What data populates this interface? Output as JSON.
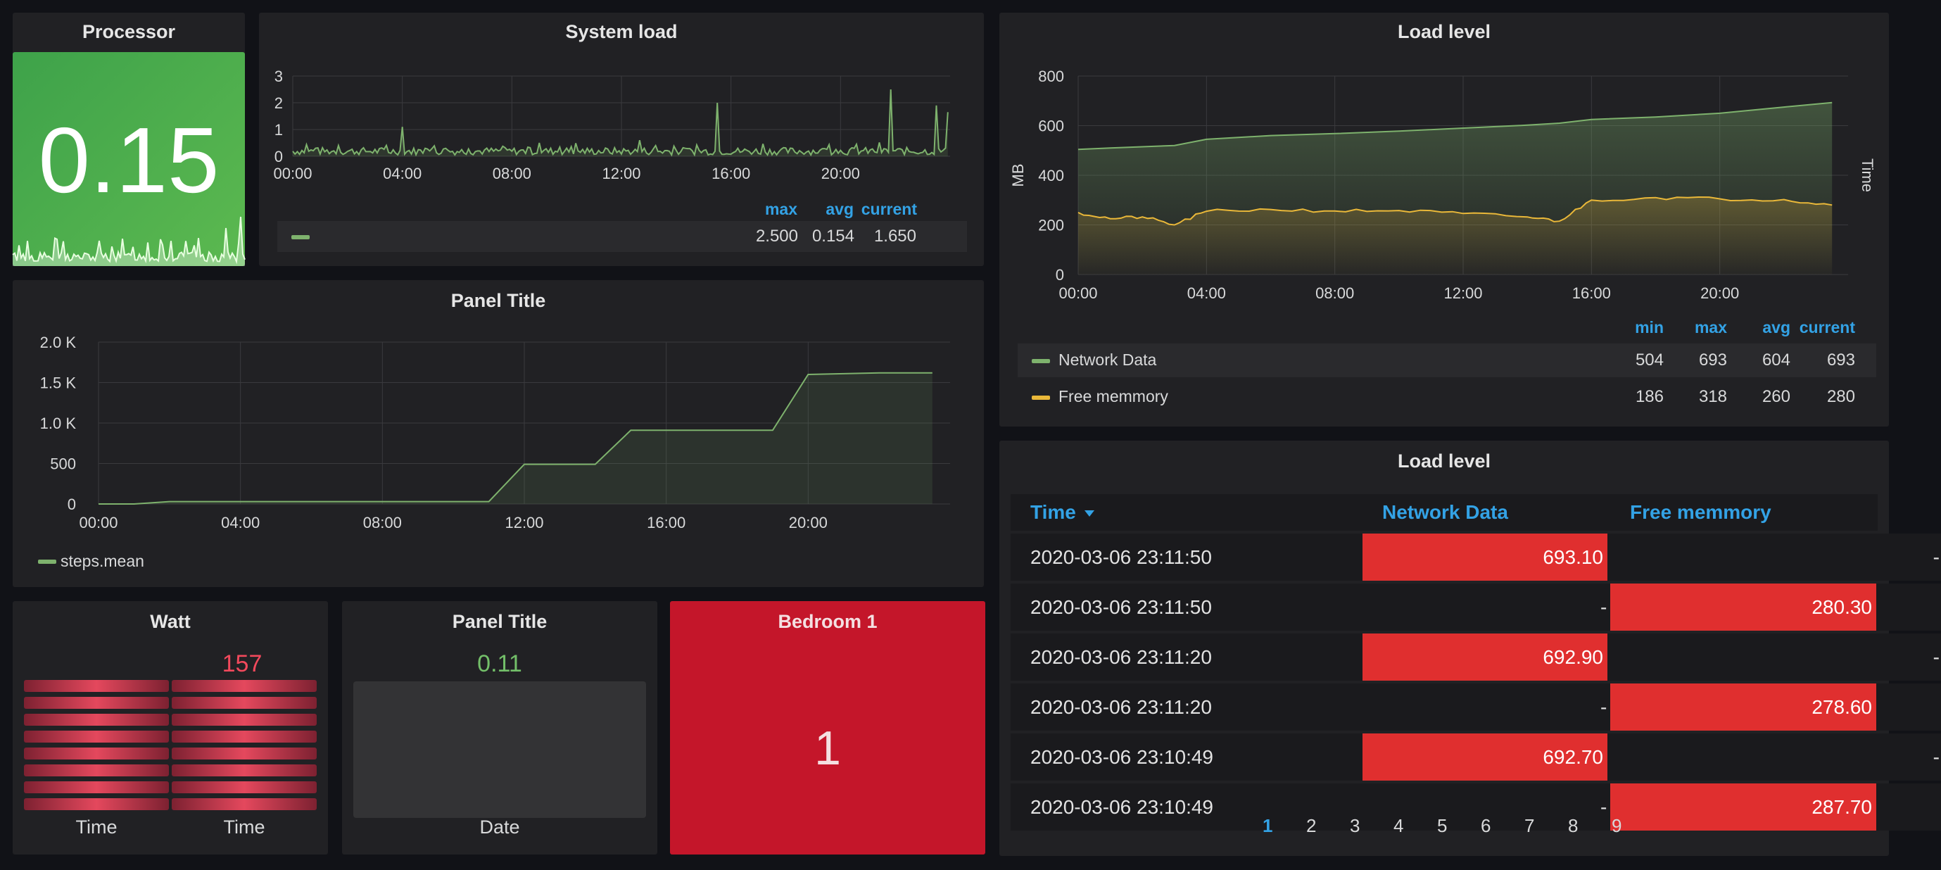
{
  "processor": {
    "title": "Processor",
    "value": "0.15"
  },
  "system_load": {
    "title": "System load",
    "legend_headers": [
      "max",
      "avg",
      "current"
    ],
    "legend_values": [
      "2.500",
      "0.154",
      "1.650"
    ],
    "color": "#7eb26d",
    "chart_data": {
      "type": "line",
      "x_ticks": [
        "00:00",
        "04:00",
        "08:00",
        "12:00",
        "16:00",
        "20:00"
      ],
      "y_ticks": [
        "0",
        "1",
        "2",
        "3"
      ],
      "ylim": [
        0,
        3
      ],
      "peaks": [
        [
          "01:40",
          0.4
        ],
        [
          "04:00",
          1.1
        ],
        [
          "09:00",
          0.5
        ],
        [
          "12:40",
          0.6
        ],
        [
          "15:30",
          2.0
        ],
        [
          "21:50",
          2.5
        ],
        [
          "23:30",
          1.9
        ]
      ],
      "current": 1.65,
      "max": 2.5,
      "avg": 0.154
    }
  },
  "panel_title_steps": {
    "title": "Panel Title",
    "legend_label": "steps.mean",
    "color": "#7eb26d",
    "chart_data": {
      "type": "line",
      "x_ticks": [
        "00:00",
        "04:00",
        "08:00",
        "12:00",
        "16:00",
        "20:00"
      ],
      "y_ticks": [
        "0",
        "500",
        "1.0 K",
        "1.5 K",
        "2.0 K"
      ],
      "ylim": [
        0,
        2000
      ],
      "x": [
        "00:00",
        "01:00",
        "02:00",
        "11:00",
        "12:00",
        "14:00",
        "15:00",
        "19:00",
        "20:00",
        "22:00",
        "23:30"
      ],
      "y": [
        0,
        0,
        30,
        30,
        490,
        490,
        910,
        910,
        1600,
        1620,
        1620
      ]
    }
  },
  "load_level_graph": {
    "title": "Load level",
    "y_label": "MB",
    "right_label": "Time",
    "legend_headers": [
      "min",
      "max",
      "avg",
      "current"
    ],
    "series": [
      {
        "name": "Network Data",
        "color": "#7eb26d",
        "values": [
          "504",
          "693",
          "604",
          "693"
        ]
      },
      {
        "name": "Free memmory",
        "color": "#eab839",
        "values": [
          "186",
          "318",
          "260",
          "280"
        ]
      }
    ],
    "chart_data": {
      "type": "area",
      "x_ticks": [
        "00:00",
        "04:00",
        "08:00",
        "12:00",
        "16:00",
        "20:00"
      ],
      "y_ticks": [
        "0",
        "200",
        "400",
        "600",
        "800"
      ],
      "ylim": [
        0,
        800
      ],
      "x": [
        "00:00",
        "01:00",
        "02:00",
        "03:00",
        "04:00",
        "06:00",
        "08:00",
        "10:00",
        "12:00",
        "14:00",
        "15:00",
        "16:00",
        "18:00",
        "20:00",
        "22:00",
        "23:30"
      ],
      "series": [
        {
          "name": "Network Data",
          "y": [
            504,
            510,
            515,
            520,
            545,
            560,
            568,
            578,
            590,
            602,
            610,
            625,
            635,
            650,
            675,
            693
          ]
        },
        {
          "name": "Free memmory",
          "y": [
            250,
            225,
            232,
            200,
            255,
            262,
            256,
            258,
            246,
            232,
            215,
            300,
            310,
            305,
            302,
            280
          ]
        }
      ]
    }
  },
  "load_level_table": {
    "title": "Load level",
    "columns": [
      "Time",
      "Network Data",
      "Free memmory"
    ],
    "rows": [
      {
        "time": "2020-03-06 23:11:50",
        "network": "693.10",
        "free": "-"
      },
      {
        "time": "2020-03-06 23:11:50",
        "network": "-",
        "free": "280.30"
      },
      {
        "time": "2020-03-06 23:11:20",
        "network": "692.90",
        "free": "-"
      },
      {
        "time": "2020-03-06 23:11:20",
        "network": "-",
        "free": "278.60"
      },
      {
        "time": "2020-03-06 23:10:49",
        "network": "692.70",
        "free": "-"
      },
      {
        "time": "2020-03-06 23:10:49",
        "network": "-",
        "free": "287.70"
      }
    ],
    "pages": [
      "1",
      "2",
      "3",
      "4",
      "5",
      "6",
      "7",
      "8",
      "9"
    ],
    "active_page": "1",
    "header_color": "#33a2e5",
    "cell_color": "#e02f2f"
  },
  "watt": {
    "title": "Watt",
    "value": "157",
    "labels": [
      "Time",
      "Time"
    ],
    "value_color": "#f2495c",
    "level": 0.55
  },
  "panel_title_date": {
    "title": "Panel Title",
    "value": "0.11",
    "label": "Date",
    "value_color": "#73bf69"
  },
  "bedroom": {
    "title": "Bedroom 1",
    "value": "1",
    "color": "#c4162a"
  }
}
